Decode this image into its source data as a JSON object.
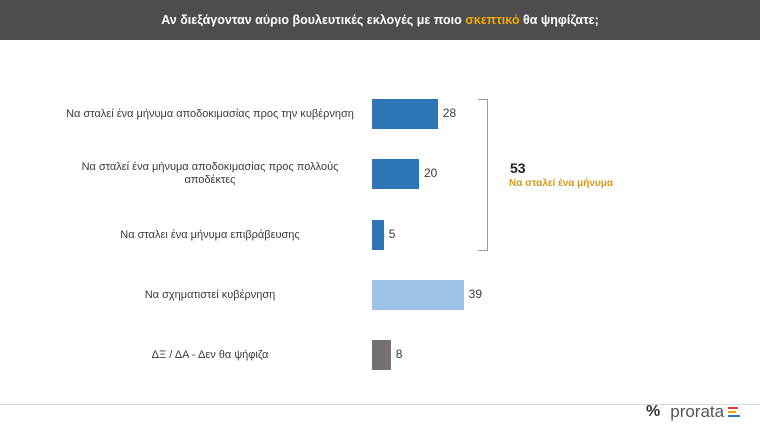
{
  "header": {
    "title_before": "Αν διεξάγονταν αύριο βουλευτικές εκλογές με ποιο ",
    "title_accent": "σκεπτικό",
    "title_after": " θα ψηφίζατε;"
  },
  "chart_data": {
    "type": "bar",
    "orientation": "horizontal",
    "categories": [
      "Να σταλεί ένα μήνυμα αποδοκιμασίας προς την κυβέρνηση",
      "Να σταλεί ένα μήνυμα αποδοκιμασίας προς πολλούς αποδέκτες",
      "Να σταλει ένα μήνυμα επιβράβευσης",
      "Να σχηματιστεί κυβέρνηση",
      "ΔΞ / ΔΑ - Δεν θα ψήφιζα"
    ],
    "values": [
      28,
      20,
      5,
      39,
      8
    ],
    "colors": [
      "#2e75b6",
      "#2e75b6",
      "#2e75b6",
      "#9dc3e6",
      "#767171"
    ],
    "xlim": [
      0,
      100
    ],
    "grid": false,
    "group_annotation": {
      "value": "53",
      "label": "Να σταλεί ένα μήνυμα",
      "covers": [
        0,
        1,
        2
      ]
    }
  },
  "brand": {
    "symbol": "%",
    "name": "prorata",
    "colors": [
      "#e03c31",
      "#f2a900",
      "#2e75b6"
    ]
  }
}
